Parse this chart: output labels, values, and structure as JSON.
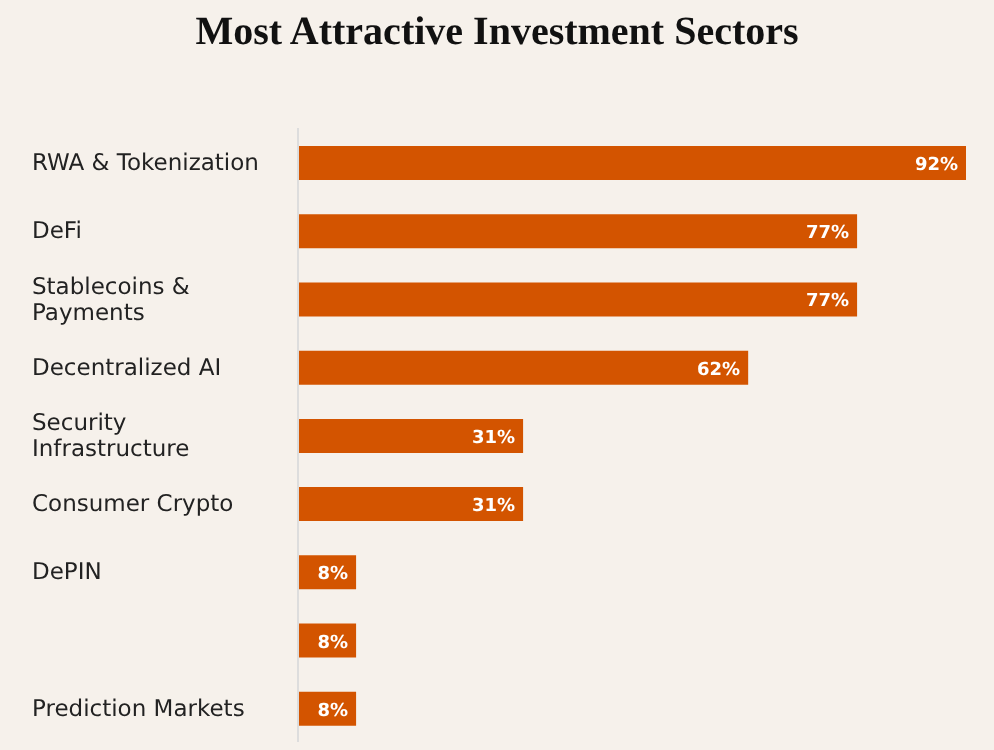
{
  "chart_data": {
    "type": "bar",
    "orientation": "horizontal",
    "title": "Most Attractive Investment Sectors",
    "categories": [
      "RWA & Tokenization",
      "DeFi",
      "Stablecoins & Payments",
      "Decentralized AI",
      "Security Infrastructure",
      "Consumer Crypto",
      "DePIN",
      null,
      "Prediction Markets"
    ],
    "values": [
      92,
      77,
      77,
      62,
      31,
      31,
      8,
      8,
      8
    ],
    "value_labels": [
      "92%",
      "77%",
      "77%",
      "62%",
      "31%",
      "31%",
      "8%",
      "8%",
      "8%"
    ],
    "color": "#d35400",
    "tick_labels": "y"
  }
}
